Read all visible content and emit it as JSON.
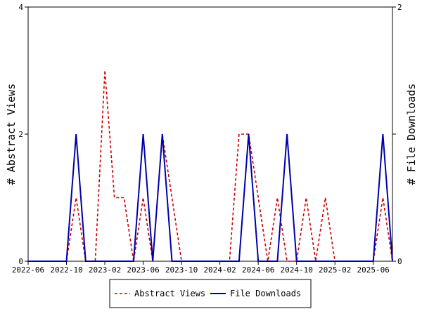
{
  "chart_data": {
    "type": "line",
    "x_dates": [
      "2022-06",
      "2022-07",
      "2022-08",
      "2022-09",
      "2022-10",
      "2022-11",
      "2022-12",
      "2023-01",
      "2023-02",
      "2023-03",
      "2023-04",
      "2023-05",
      "2023-06",
      "2023-07",
      "2023-08",
      "2023-09",
      "2023-10",
      "2023-11",
      "2023-12",
      "2024-01",
      "2024-02",
      "2024-03",
      "2024-04",
      "2024-05",
      "2024-06",
      "2024-07",
      "2024-08",
      "2024-09",
      "2024-10",
      "2024-11",
      "2024-12",
      "2025-01",
      "2025-02",
      "2025-03",
      "2025-04",
      "2025-05",
      "2025-06",
      "2025-07",
      "2025-08"
    ],
    "x_ticks": [
      "2022-06",
      "2022-10",
      "2023-02",
      "2023-06",
      "2023-10",
      "2024-02",
      "2024-06",
      "2024-10",
      "2025-02",
      "2025-06"
    ],
    "series": [
      {
        "name": "Abstract Views",
        "axis": "left",
        "color": "#cc0000",
        "dash": true,
        "values": [
          0,
          0,
          0,
          0,
          0,
          1,
          0,
          0,
          3,
          1,
          1,
          0,
          1,
          0,
          2,
          1,
          0,
          0,
          0,
          0,
          0,
          0,
          2,
          2,
          1,
          0,
          1,
          0,
          0,
          1,
          0,
          1,
          0,
          0,
          0,
          0,
          0,
          1,
          0
        ]
      },
      {
        "name": "File Downloads",
        "axis": "right",
        "color": "#0000aa",
        "dash": false,
        "values": [
          0,
          0,
          0,
          0,
          0,
          1,
          0,
          0,
          0,
          0,
          0,
          0,
          1,
          0,
          1,
          0,
          0,
          0,
          0,
          0,
          0,
          0,
          0,
          1,
          0,
          0,
          0,
          1,
          0,
          0,
          0,
          0,
          0,
          0,
          0,
          0,
          0,
          1,
          0
        ]
      }
    ],
    "ylabel": "# Abstract Views",
    "y2label": "# File Downloads",
    "ylim": [
      0,
      4
    ],
    "y2lim": [
      0,
      2
    ],
    "y_ticks": [
      "0",
      "2",
      "4"
    ],
    "y2_ticks": [
      "0",
      "1",
      "2"
    ],
    "legend_position": "bottom-center",
    "grid": false
  }
}
